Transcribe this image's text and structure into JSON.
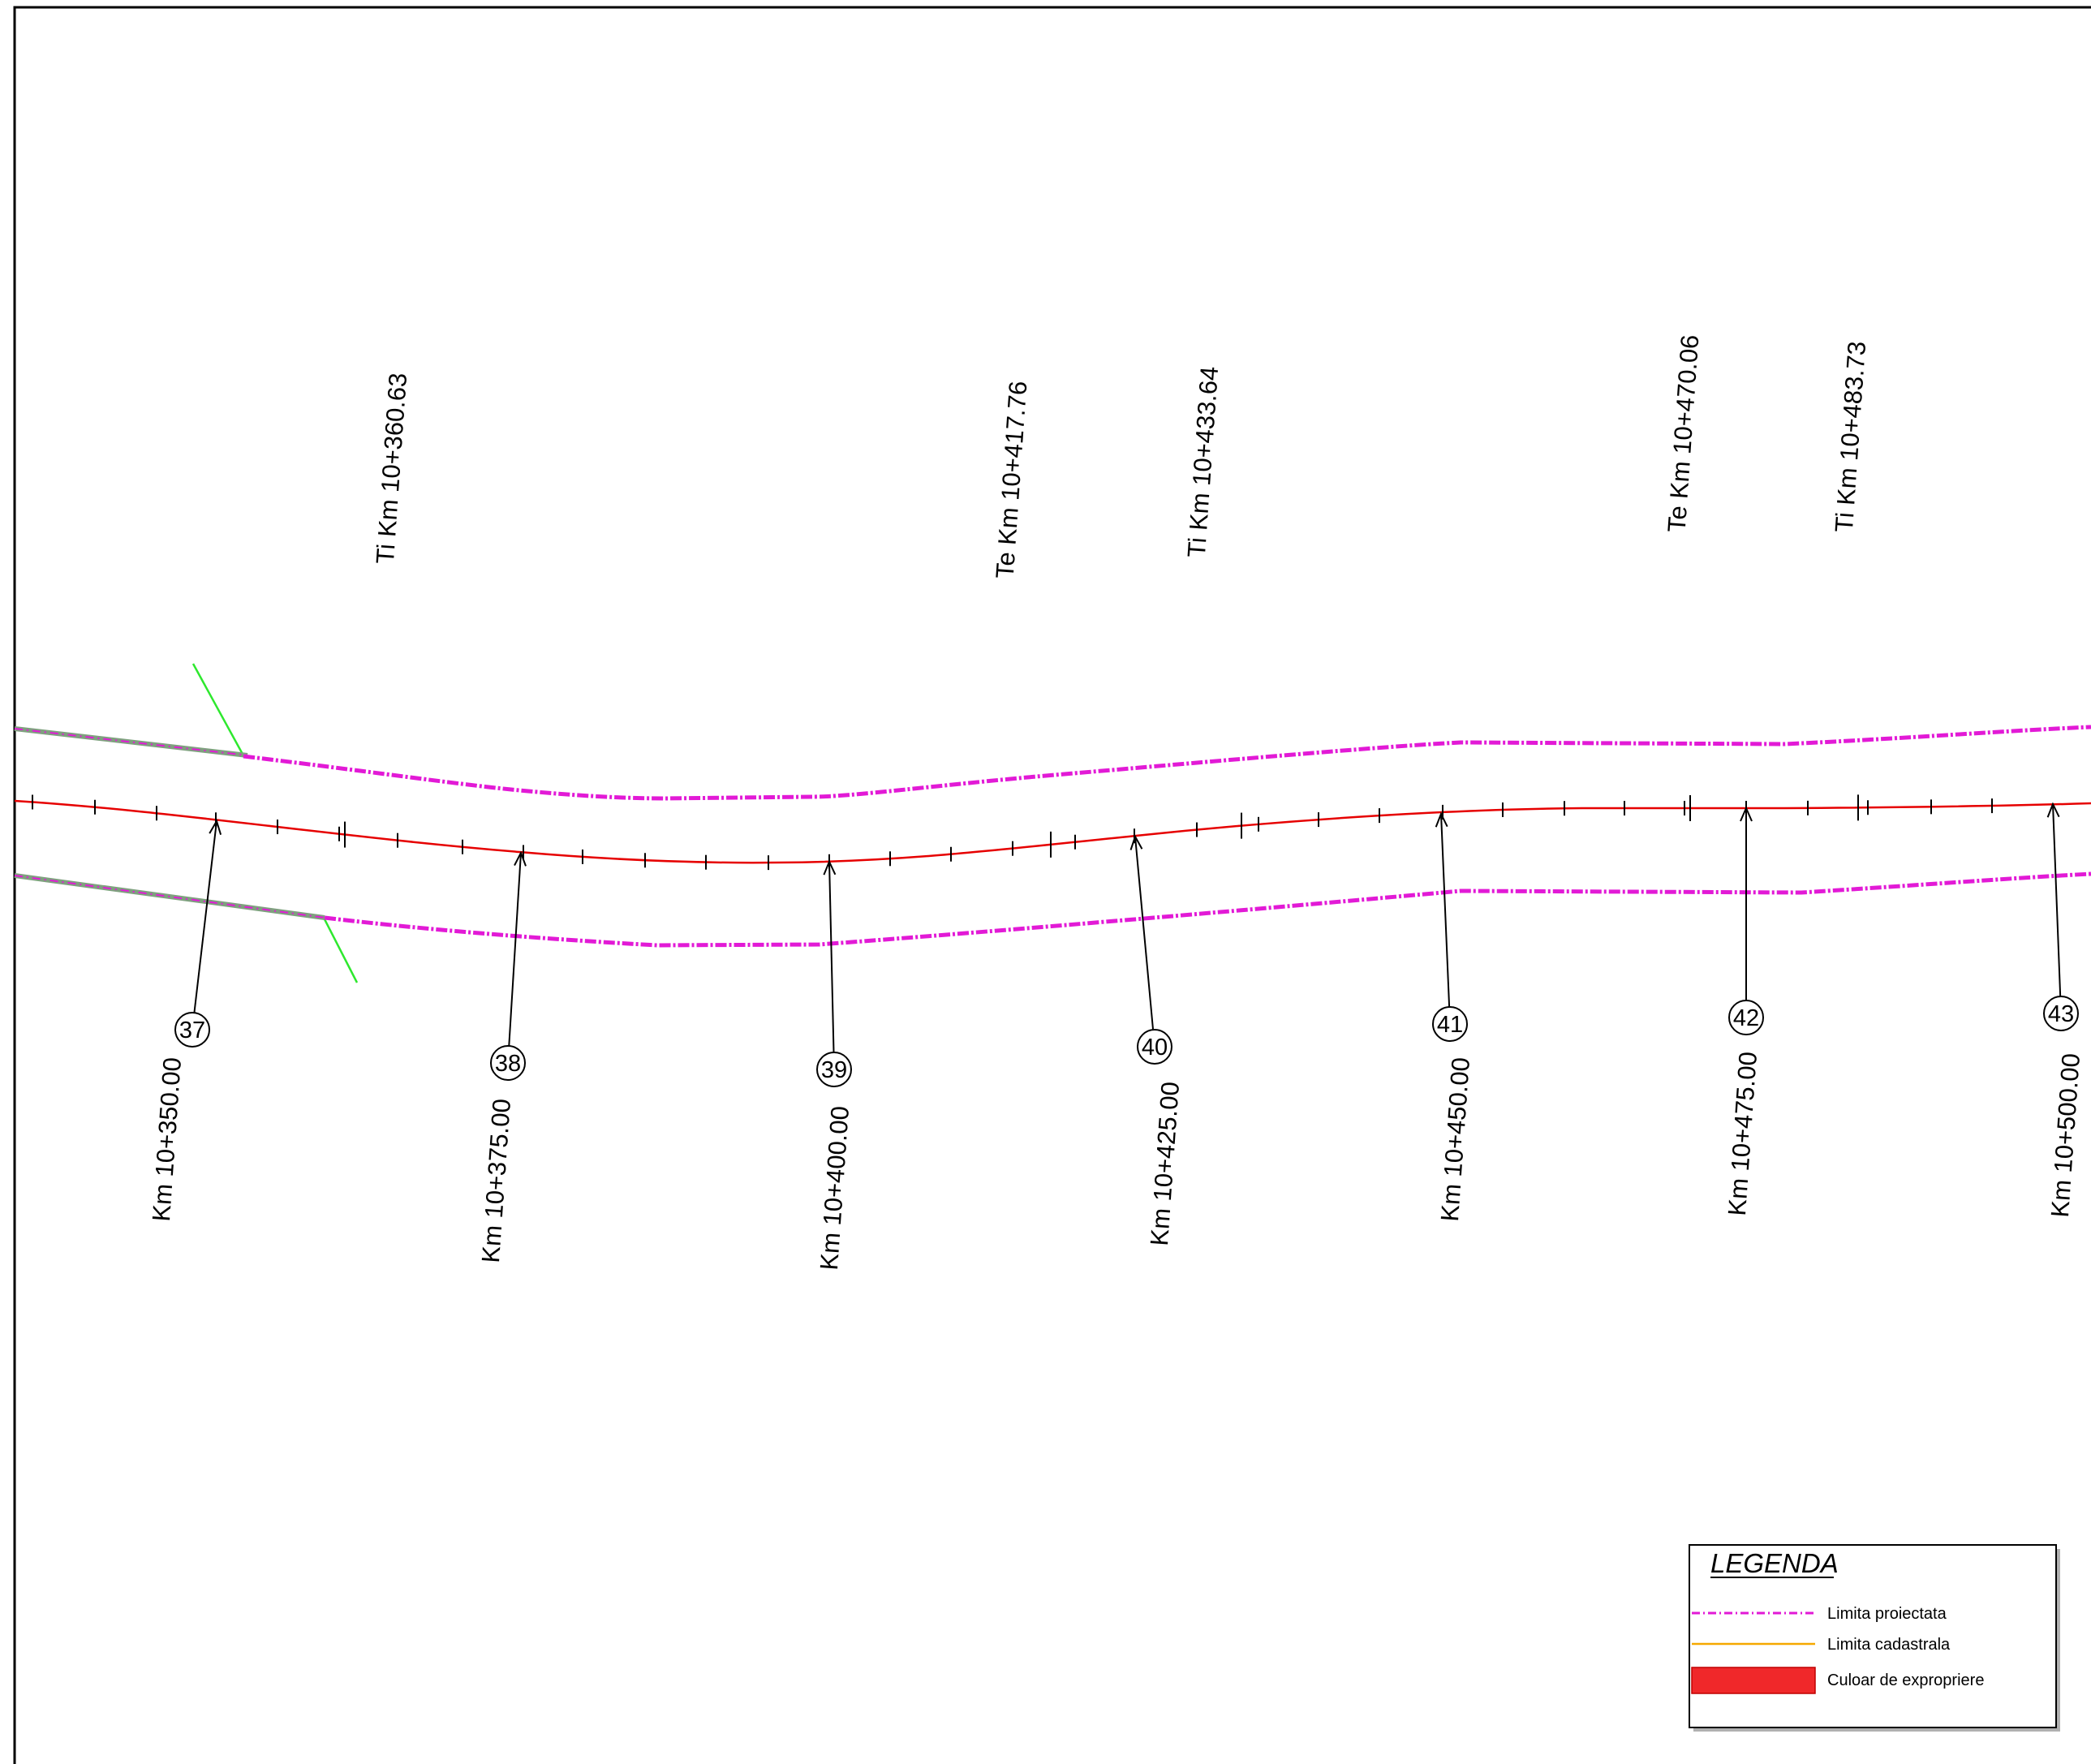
{
  "curve_labels": [
    "Ti Km 10+360.63",
    "Te Km 10+417.76",
    "Ti Km 10+433.64",
    "Te Km 10+470.06",
    "Ti Km 10+483.73"
  ],
  "profiles": [
    {
      "number": "37",
      "km": "Km 10+350.00"
    },
    {
      "number": "38",
      "km": "Km 10+375.00"
    },
    {
      "number": "39",
      "km": "Km 10+400.00"
    },
    {
      "number": "40",
      "km": "Km 10+425.00"
    },
    {
      "number": "41",
      "km": "Km 10+450.00"
    },
    {
      "number": "42",
      "km": "Km 10+475.00"
    },
    {
      "number": "43",
      "km": "Km 10+500.00"
    }
  ],
  "legend": {
    "title": "LEGENDA",
    "items": [
      {
        "label": "Limita proiectata",
        "symbol": "dash-dot-line",
        "color": "#e21ad6"
      },
      {
        "label": "Limita cadastrala",
        "symbol": "solid-line",
        "color": "#f5a800"
      },
      {
        "label": "Culoar de expropriere",
        "symbol": "filled-rect",
        "color": "#f0282a"
      }
    ]
  },
  "colors": {
    "axis": "#e60000",
    "boundary": "#e21ad6",
    "boundary_old": "#7fa07f",
    "marker": "#2ee82e",
    "frame": "#000000"
  }
}
